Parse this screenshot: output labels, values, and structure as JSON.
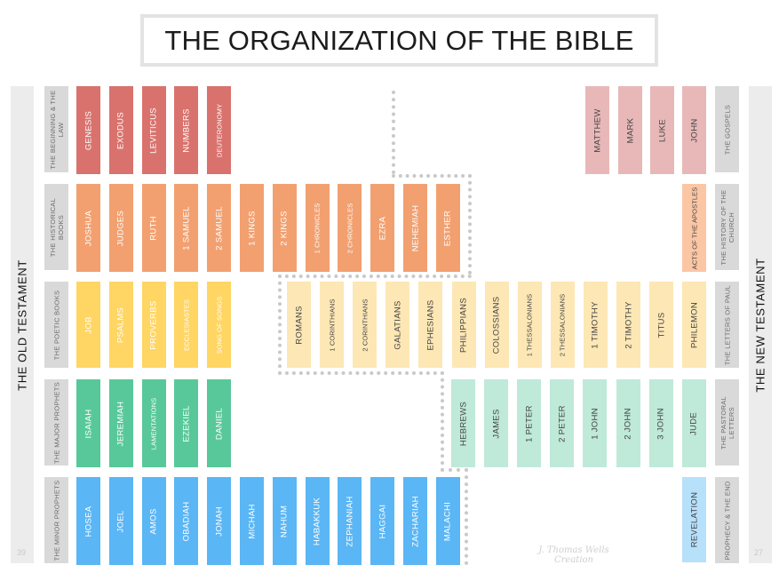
{
  "title": "THE ORGANIZATION OF THE BIBLE",
  "old_testament": {
    "label": "THE OLD TESTAMENT",
    "count": "39"
  },
  "new_testament": {
    "label": "THE NEW TESTAMENT",
    "count": "27"
  },
  "watermark": "J. Thomas Wells Creation",
  "colors": {
    "law": "#d9726d",
    "law_text": "#ffffff",
    "history": "#f2a070",
    "history_text": "#ffffff",
    "poetic": "#ffd563",
    "poetic_text": "#ffffff",
    "major": "#58c89a",
    "major_text": "#ffffff",
    "minor": "#5ab6f5",
    "minor_text": "#ffffff",
    "gospels": "#e8b8b8",
    "gospels_text": "#444444",
    "church": "#fbc6a4",
    "church_text": "#444444",
    "paul": "#fde7b5",
    "paul_text": "#444444",
    "pastoral": "#bfe9d9",
    "pastoral_text": "#444444",
    "end": "#b7e0fb",
    "end_text": "#444444",
    "category_bg": "#d9d9d9",
    "testament_bg": "#ececec",
    "dotted": "#c9c9c9"
  },
  "categories_left": [
    {
      "label": "THE BEGINNING & THE LAW"
    },
    {
      "label": "THE HISTORICAL BOOKS"
    },
    {
      "label": "THE POETIC BOOKS"
    },
    {
      "label": "THE MAJOR PROPHETS"
    },
    {
      "label": "THE MINOR PROPHETS"
    }
  ],
  "categories_right": [
    {
      "label": "THE GOSPELS"
    },
    {
      "label": "THE HISTORY OF THE CHURCH"
    },
    {
      "label": "THE LETTERS OF PAUL"
    },
    {
      "label": "THE PASTORAL LETTERS"
    },
    {
      "label": "PROPHECY & THE END"
    }
  ],
  "law": [
    "GENESIS",
    "EXODUS",
    "LEVITICUS",
    "NUMBERS",
    "DEUTERONOMY"
  ],
  "history": [
    "JOSHUA",
    "JUDGES",
    "RUTH",
    "1 SAMUEL",
    "2 SAMUEL",
    "1 KINGS",
    "2 KINGS",
    "1 CHRONICLES",
    "2 CHRONICLES",
    "EZRA",
    "NEHEMIAH",
    "ESTHER"
  ],
  "poetic": [
    "JOB",
    "PSALMS",
    "PROVERBS",
    "ECCLESIASTES",
    "SONG OF SONGS"
  ],
  "major": [
    "ISAIAH",
    "JEREMIAH",
    "LAMENTATIONS",
    "EZEKIEL",
    "DANIEL"
  ],
  "minor": [
    "HOSEA",
    "JOEL",
    "AMOS",
    "OBADIAH",
    "JONAH",
    "MICHAH",
    "NAHUM",
    "HABAKKUK",
    "ZEPHANIAH",
    "HAGGAI",
    "ZACHARIAH",
    "MALACHI"
  ],
  "gospels": [
    "MATTHEW",
    "MARK",
    "LUKE",
    "JOHN"
  ],
  "church": [
    "ACTS OF THE APOSTLES"
  ],
  "paul": [
    "ROMANS",
    "1 CORINTHIANS",
    "2 CORINTHIANS",
    "GALATIANS",
    "EPHESIANS",
    "PHILIPPIANS",
    "COLOSSIANS",
    "1 THESSALONIANS",
    "2 THESSALONIANS",
    "1 TIMOTHY",
    "2 TIMOTHY",
    "TITUS",
    "PHILEMON"
  ],
  "pastoral": [
    "HEBREWS",
    "JAMES",
    "1 PETER",
    "2 PETER",
    "1 JOHN",
    "2 JOHN",
    "3 JOHN",
    "JUDE"
  ],
  "end": [
    "REVELATION"
  ]
}
